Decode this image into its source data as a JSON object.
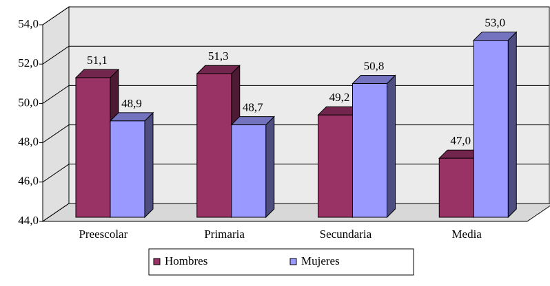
{
  "chart_data": {
    "type": "bar3d",
    "categories": [
      "Preescolar",
      "Primaria",
      "Secundaria",
      "Media"
    ],
    "series": [
      {
        "name": "Hombres",
        "color": "#993366",
        "values": [
          51.1,
          51.3,
          49.2,
          47.0
        ],
        "value_labels": [
          "51,1",
          "51,3",
          "49,2",
          "47,0"
        ]
      },
      {
        "name": "Mujeres",
        "color": "#9999ff",
        "values": [
          48.9,
          48.7,
          50.8,
          53.0
        ],
        "value_labels": [
          "48,9",
          "48,7",
          "50,8",
          "53,0"
        ]
      }
    ],
    "ylim": [
      44,
      54
    ],
    "yticks": [
      {
        "value": 44,
        "label": "44,0"
      },
      {
        "value": 46,
        "label": "46,0"
      },
      {
        "value": 48,
        "label": "48,0"
      },
      {
        "value": 50,
        "label": "50,0"
      },
      {
        "value": 52,
        "label": "52,0"
      },
      {
        "value": 54,
        "label": "54,0"
      }
    ],
    "grid": true,
    "legend": "bottom"
  }
}
